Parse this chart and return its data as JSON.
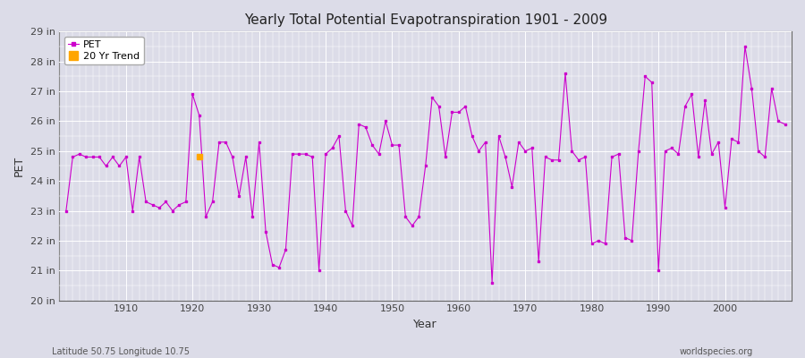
{
  "title": "Yearly Total Potential Evapotranspiration 1901 - 2009",
  "xlabel": "Year",
  "ylabel": "PET",
  "subtitle_left": "Latitude 50.75 Longitude 10.75",
  "subtitle_right": "worldspecies.org",
  "line_color": "#CC00CC",
  "trend_color": "#FFA500",
  "bg_color": "#DCDCE8",
  "grid_color": "#FFFFFF",
  "ylim": [
    20,
    29
  ],
  "ytick_labels": [
    "20 in",
    "21 in",
    "22 in",
    "23 in",
    "24 in",
    "25 in",
    "26 in",
    "27 in",
    "28 in",
    "29 in"
  ],
  "ytick_values": [
    20,
    21,
    22,
    23,
    24,
    25,
    26,
    27,
    28,
    29
  ],
  "years": [
    1901,
    1902,
    1903,
    1904,
    1905,
    1906,
    1907,
    1908,
    1909,
    1910,
    1911,
    1912,
    1913,
    1914,
    1915,
    1916,
    1917,
    1918,
    1919,
    1920,
    1921,
    1922,
    1923,
    1924,
    1925,
    1926,
    1927,
    1928,
    1929,
    1930,
    1931,
    1932,
    1933,
    1934,
    1935,
    1936,
    1937,
    1938,
    1939,
    1940,
    1941,
    1942,
    1943,
    1944,
    1945,
    1946,
    1947,
    1948,
    1949,
    1950,
    1951,
    1952,
    1953,
    1954,
    1955,
    1956,
    1957,
    1958,
    1959,
    1960,
    1961,
    1962,
    1963,
    1964,
    1965,
    1966,
    1967,
    1968,
    1969,
    1970,
    1971,
    1972,
    1973,
    1974,
    1975,
    1976,
    1977,
    1978,
    1979,
    1980,
    1981,
    1982,
    1983,
    1984,
    1985,
    1986,
    1987,
    1988,
    1989,
    1990,
    1991,
    1992,
    1993,
    1994,
    1995,
    1996,
    1997,
    1998,
    1999,
    2000,
    2001,
    2002,
    2003,
    2004,
    2005,
    2006,
    2007,
    2008,
    2009
  ],
  "pet_values": [
    23.0,
    24.8,
    24.9,
    24.8,
    24.8,
    24.8,
    24.5,
    24.8,
    24.5,
    24.8,
    23.0,
    24.8,
    23.3,
    23.2,
    23.1,
    23.3,
    23.0,
    23.2,
    23.3,
    26.9,
    26.2,
    22.8,
    23.3,
    25.3,
    25.3,
    24.8,
    23.5,
    24.8,
    22.8,
    25.3,
    22.3,
    21.2,
    21.1,
    21.7,
    24.9,
    24.9,
    24.9,
    24.8,
    21.0,
    24.9,
    25.1,
    25.5,
    23.0,
    22.5,
    25.9,
    25.8,
    25.2,
    24.9,
    26.0,
    25.2,
    25.2,
    22.8,
    22.5,
    22.8,
    24.5,
    26.8,
    26.5,
    24.8,
    26.3,
    26.3,
    26.5,
    25.5,
    25.0,
    25.3,
    20.6,
    25.5,
    24.8,
    23.8,
    25.3,
    25.0,
    25.1,
    21.3,
    24.8,
    24.7,
    24.7,
    27.6,
    25.0,
    24.7,
    24.8,
    21.9,
    22.0,
    21.9,
    24.8,
    24.9,
    22.1,
    22.0,
    25.0,
    27.5,
    27.3,
    21.0,
    25.0,
    25.1,
    24.9,
    26.5,
    26.9,
    24.8,
    26.7,
    24.9,
    25.3,
    23.1,
    25.4,
    25.3,
    28.5,
    27.1,
    25.0,
    24.8,
    27.1,
    26.0,
    25.9
  ],
  "trend_year": 1921,
  "trend_value": 24.8,
  "legend_pet": "PET",
  "legend_trend": "20 Yr Trend"
}
